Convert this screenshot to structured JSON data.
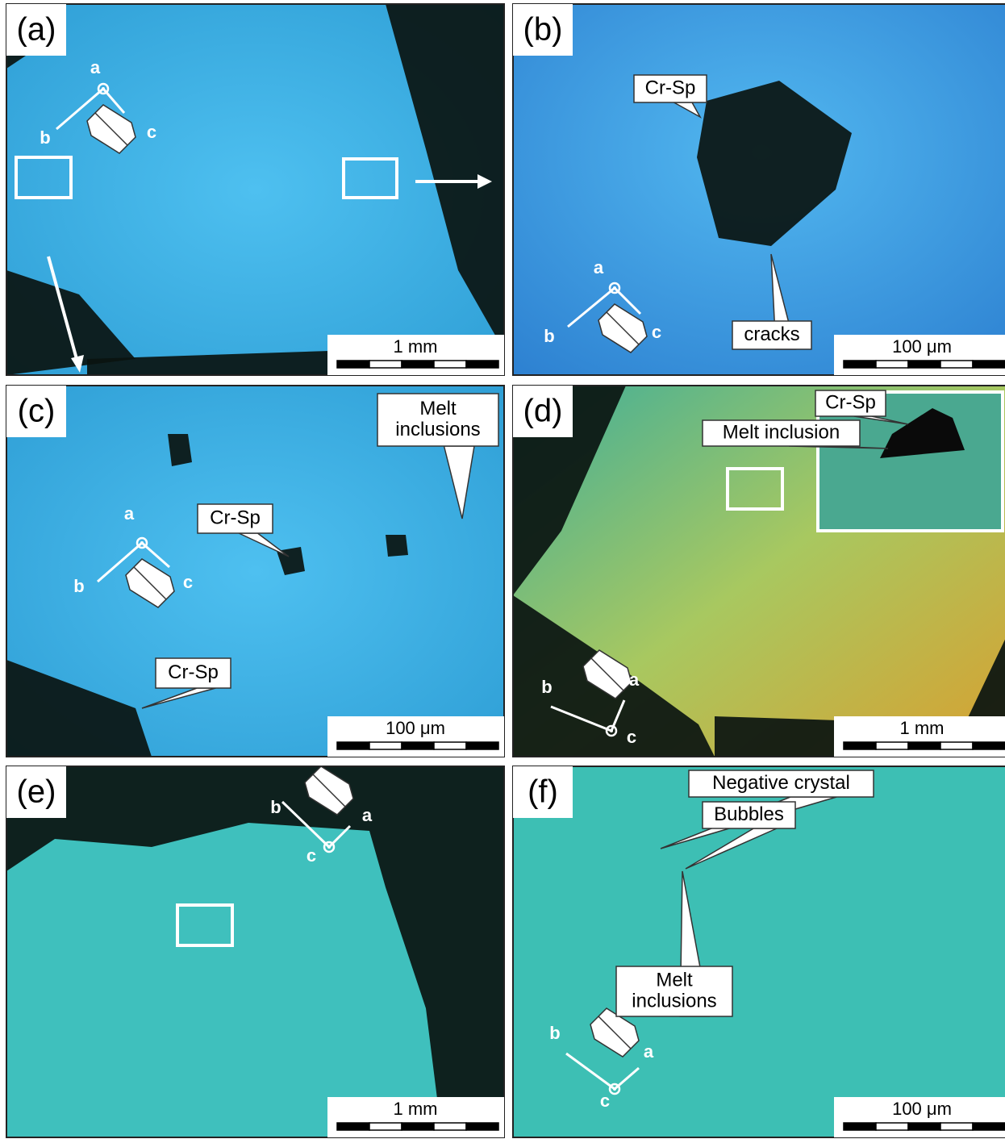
{
  "panels": [
    {
      "label": "(a)",
      "axis_labels": [
        "a",
        "b",
        "c"
      ],
      "scale_bar": "1 mm",
      "callouts": []
    },
    {
      "label": "(b)",
      "axis_labels": [
        "a",
        "b",
        "c"
      ],
      "scale_bar": "100 μm",
      "callouts": [
        {
          "lines": [
            "Cr-Sp"
          ]
        },
        {
          "lines": [
            "cracks"
          ]
        }
      ]
    },
    {
      "label": "(c)",
      "axis_labels": [
        "a",
        "b",
        "c"
      ],
      "scale_bar": "100 μm",
      "callouts": [
        {
          "lines": [
            "Melt",
            "inclusions"
          ]
        },
        {
          "lines": [
            "Cr-Sp"
          ]
        },
        {
          "lines": [
            "Cr-Sp"
          ]
        }
      ]
    },
    {
      "label": "(d)",
      "axis_labels": [
        "b",
        "a",
        "c"
      ],
      "scale_bar": "1 mm",
      "callouts": [
        {
          "lines": [
            "Cr-Sp"
          ]
        },
        {
          "lines": [
            "Melt inclusion"
          ]
        }
      ]
    },
    {
      "label": "(e)",
      "axis_labels": [
        "b",
        "a",
        "c"
      ],
      "scale_bar": "1 mm",
      "callouts": []
    },
    {
      "label": "(f)",
      "axis_labels": [
        "b",
        "a",
        "c"
      ],
      "scale_bar": "100 μm",
      "callouts": [
        {
          "lines": [
            "Negative crystal"
          ]
        },
        {
          "lines": [
            "Bubbles"
          ]
        },
        {
          "lines": [
            "Melt",
            "inclusions"
          ]
        }
      ]
    }
  ]
}
